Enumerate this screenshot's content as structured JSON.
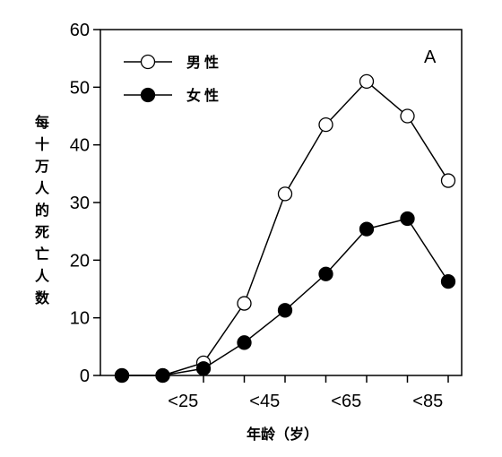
{
  "chart_data": {
    "type": "line",
    "panel_label": "A",
    "xlabel": "年龄（岁）",
    "ylabel": "每十万人的死亡人数",
    "categories": [
      "",
      "<25",
      "",
      "<45",
      "",
      "<65",
      "",
      "<85",
      ""
    ],
    "ylim": [
      0,
      60
    ],
    "yticks": [
      0,
      10,
      20,
      30,
      40,
      50,
      60
    ],
    "legend_position": "top-left",
    "series": [
      {
        "name": "男性",
        "marker": "open-circle",
        "values": [
          0,
          0,
          2.2,
          12.5,
          31.5,
          43.5,
          51,
          45,
          33.8
        ]
      },
      {
        "name": "女性",
        "marker": "filled-circle",
        "values": [
          0,
          0,
          1.2,
          5.7,
          11.3,
          17.6,
          25.4,
          27.2,
          16.3
        ]
      }
    ]
  }
}
